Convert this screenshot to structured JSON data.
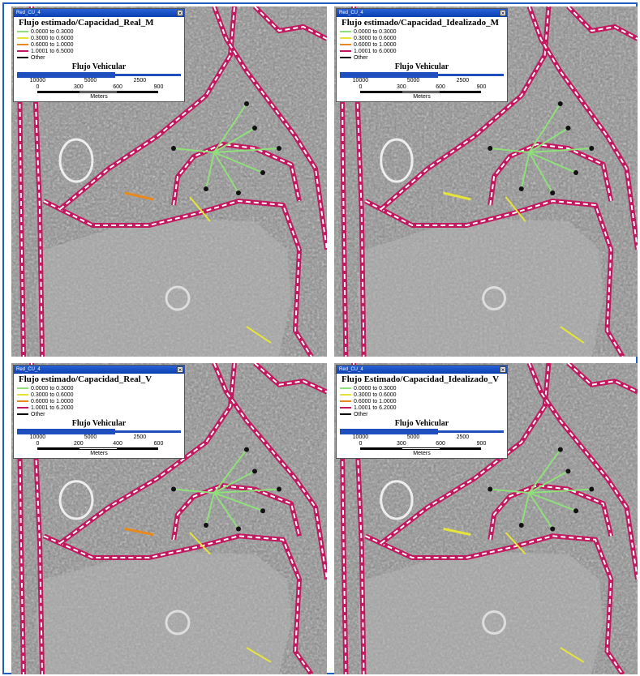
{
  "panels": [
    {
      "window_title": "Red_CU_4",
      "legend_title": "Flujo estimado/Capacidad_Real_M",
      "items": [
        {
          "label": "0.0000 to 0.3000",
          "color": "#8fe07a"
        },
        {
          "label": "0.3000 to 0.6000",
          "color": "#e6e43a"
        },
        {
          "label": "0.6000 to 1.0000",
          "color": "#e8891e"
        },
        {
          "label": "1.0001 to 6.5000",
          "color": "#c2185f"
        },
        {
          "label": "Other",
          "color": "#000000"
        }
      ],
      "scale_title": "Flujo Vehicular",
      "flow_labels": [
        "10000",
        "5000",
        "2500"
      ],
      "distance_labels": [
        "0",
        "300",
        "600",
        "900"
      ],
      "distance_unit": "Meters"
    },
    {
      "window_title": "Red_CU_4",
      "legend_title": "Flujo estimado/Capacidad_Idealizado_M",
      "items": [
        {
          "label": "0.0000 to 0.3000",
          "color": "#8fe07a"
        },
        {
          "label": "0.3000 to 0.6000",
          "color": "#e6e43a"
        },
        {
          "label": "0.6000 to 1.0000",
          "color": "#e8891e"
        },
        {
          "label": "1.0001 to 6.0000",
          "color": "#c2185f"
        },
        {
          "label": "Other",
          "color": "#000000"
        }
      ],
      "scale_title": "Flujo Vehicular",
      "flow_labels": [
        "10000",
        "5000",
        "2500"
      ],
      "distance_labels": [
        "0",
        "300",
        "600",
        "900"
      ],
      "distance_unit": "Meters"
    },
    {
      "window_title": "Red_CU_4",
      "legend_title": "Flujo estimado/Capacidad_Real_V",
      "items": [
        {
          "label": "0.0000 to 0.3000",
          "color": "#8fe07a"
        },
        {
          "label": "0.3000 to 0.6000",
          "color": "#e6e43a"
        },
        {
          "label": "0.6000 to 1.0000",
          "color": "#e8891e"
        },
        {
          "label": "1.0001 to 6.2000",
          "color": "#c2185f"
        },
        {
          "label": "Other",
          "color": "#000000"
        }
      ],
      "scale_title": "Flujo Vehicular",
      "flow_labels": [
        "10000",
        "5000",
        "2500"
      ],
      "distance_labels": [
        "0",
        "200",
        "400",
        "600"
      ],
      "distance_unit": "Meters"
    },
    {
      "window_title": "Red_CU_4",
      "legend_title": "Flujo Estimado/Capacidad_Idealizado_V",
      "items": [
        {
          "label": "0.0000 to 0.3000",
          "color": "#8fe07a"
        },
        {
          "label": "0.3000 to 0.6000",
          "color": "#e6e43a"
        },
        {
          "label": "0.6000 to 1.0000",
          "color": "#e8891e"
        },
        {
          "label": "1.0001 to 6.2000",
          "color": "#c2185f"
        },
        {
          "label": "Other",
          "color": "#000000"
        }
      ],
      "scale_title": "Flujo Vehicular",
      "flow_labels": [
        "10000",
        "5000",
        "2500"
      ],
      "distance_labels": [
        "0",
        "300",
        "600",
        "900"
      ],
      "distance_unit": "Meters"
    }
  ]
}
